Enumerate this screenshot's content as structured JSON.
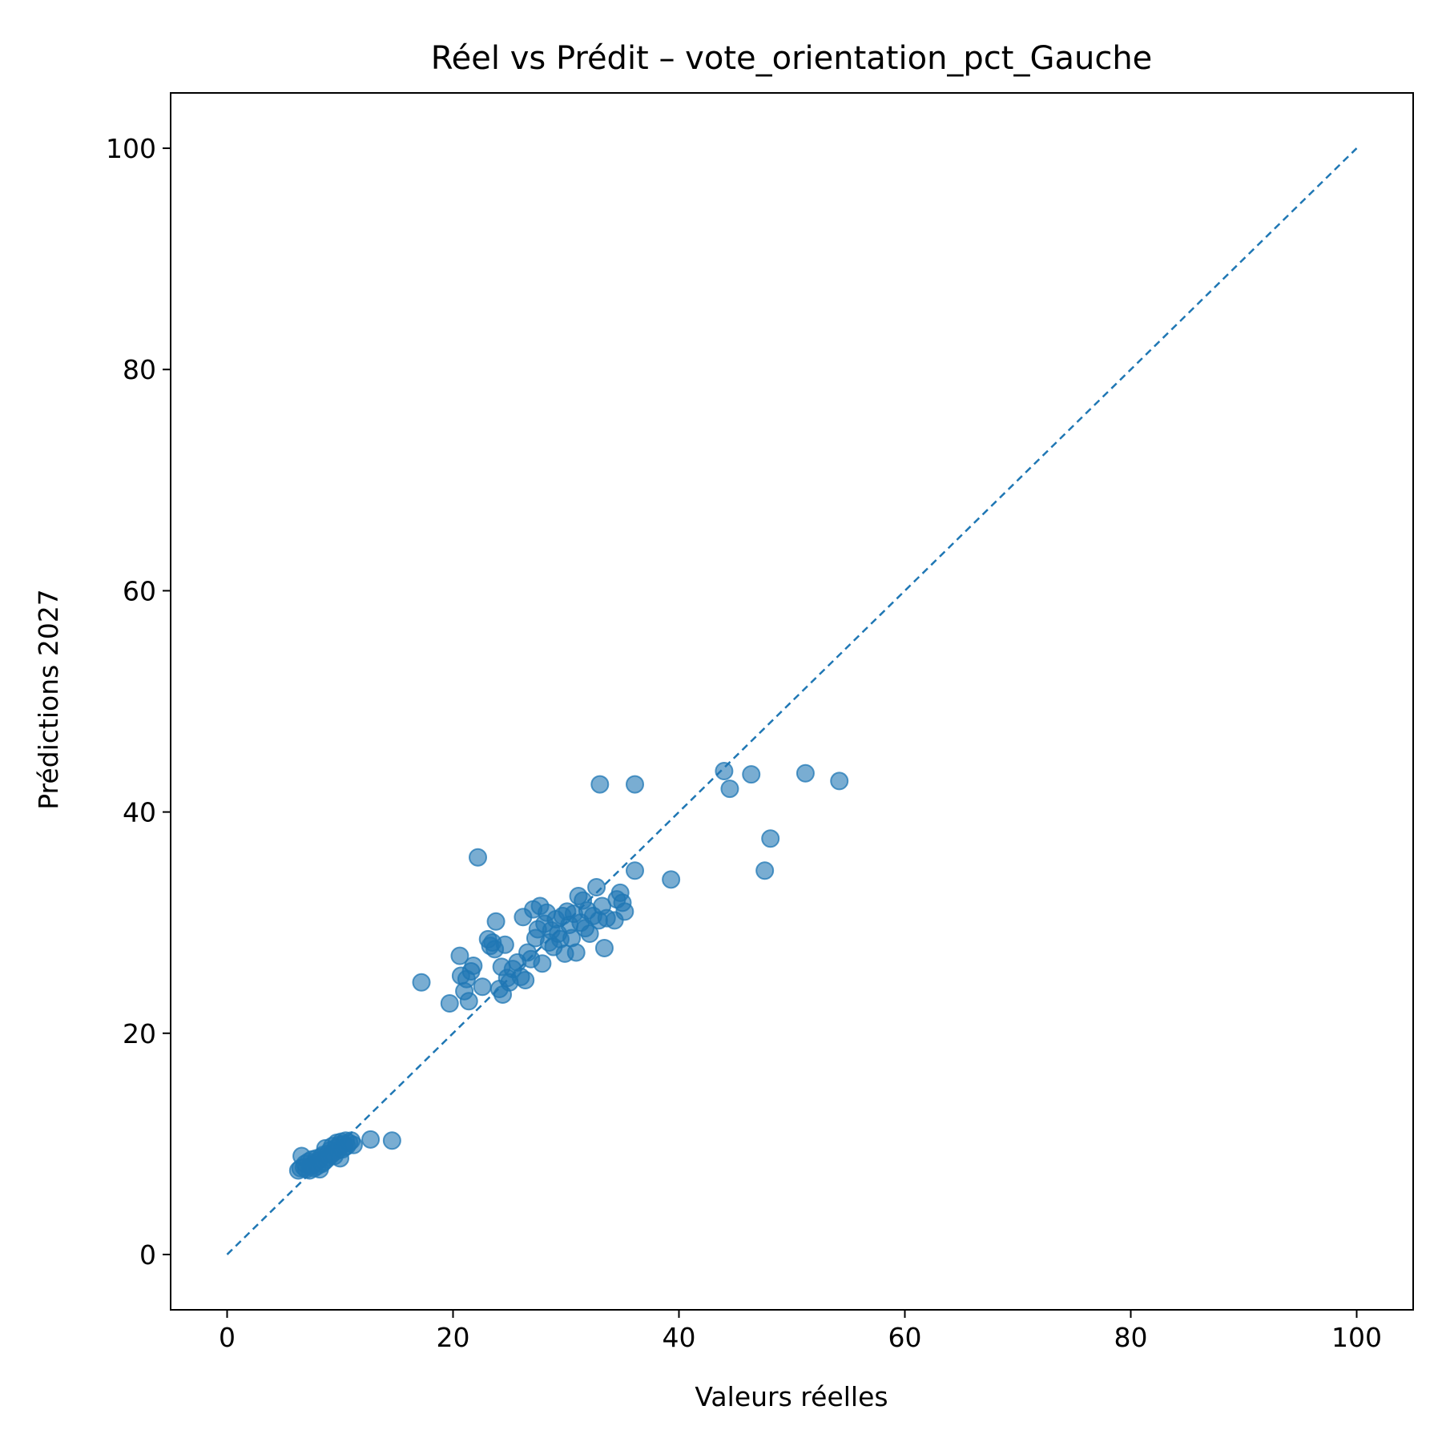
{
  "chart_data": {
    "type": "scatter",
    "title": "Réel vs Prédit – vote_orientation_pct_Gauche",
    "xlabel": "Valeurs réelles",
    "ylabel": "Prédictions 2027",
    "xlim": [
      -5,
      105
    ],
    "ylim": [
      -5,
      105
    ],
    "xticks": [
      0,
      20,
      40,
      60,
      80,
      100
    ],
    "yticks": [
      0,
      20,
      40,
      60,
      80,
      100
    ],
    "grid": false,
    "color": "#1f77b4",
    "reference_line": {
      "x": [
        0,
        100
      ],
      "y": [
        0,
        100
      ],
      "style": "dashed"
    },
    "points": [
      [
        6.3,
        7.6
      ],
      [
        6.5,
        7.8
      ],
      [
        6.6,
        8.9
      ],
      [
        6.8,
        7.9
      ],
      [
        6.9,
        8.2
      ],
      [
        7.0,
        7.7
      ],
      [
        7.2,
        8.4
      ],
      [
        7.3,
        7.6
      ],
      [
        7.4,
        8.0
      ],
      [
        7.5,
        8.6
      ],
      [
        7.6,
        8.1
      ],
      [
        7.7,
        7.8
      ],
      [
        7.8,
        8.3
      ],
      [
        7.9,
        8.7
      ],
      [
        8.0,
        8.0
      ],
      [
        8.1,
        8.5
      ],
      [
        8.2,
        7.7
      ],
      [
        8.3,
        8.8
      ],
      [
        8.4,
        8.2
      ],
      [
        8.5,
        9.0
      ],
      [
        8.6,
        8.4
      ],
      [
        8.7,
        9.6
      ],
      [
        8.8,
        8.6
      ],
      [
        8.9,
        9.1
      ],
      [
        9.0,
        8.8
      ],
      [
        9.1,
        9.4
      ],
      [
        9.2,
        9.0
      ],
      [
        9.3,
        9.8
      ],
      [
        9.4,
        9.2
      ],
      [
        9.5,
        8.9
      ],
      [
        9.6,
        9.6
      ],
      [
        9.7,
        10.1
      ],
      [
        9.8,
        9.4
      ],
      [
        9.9,
        9.9
      ],
      [
        10.0,
        8.7
      ],
      [
        10.1,
        10.2
      ],
      [
        10.2,
        9.5
      ],
      [
        10.3,
        10.0
      ],
      [
        10.4,
        9.7
      ],
      [
        10.5,
        10.3
      ],
      [
        10.6,
        9.8
      ],
      [
        10.8,
        10.1
      ],
      [
        11.0,
        10.3
      ],
      [
        11.2,
        9.9
      ],
      [
        12.7,
        10.4
      ],
      [
        14.6,
        10.3
      ],
      [
        17.2,
        24.6
      ],
      [
        19.7,
        22.7
      ],
      [
        20.6,
        27.0
      ],
      [
        20.7,
        25.2
      ],
      [
        21.0,
        23.8
      ],
      [
        21.2,
        24.9
      ],
      [
        21.4,
        22.9
      ],
      [
        21.6,
        25.6
      ],
      [
        21.8,
        26.1
      ],
      [
        22.2,
        35.9
      ],
      [
        22.6,
        24.2
      ],
      [
        23.1,
        28.5
      ],
      [
        23.3,
        27.9
      ],
      [
        23.5,
        28.2
      ],
      [
        23.7,
        27.6
      ],
      [
        23.8,
        30.1
      ],
      [
        24.1,
        24.0
      ],
      [
        24.3,
        26.0
      ],
      [
        24.4,
        23.5
      ],
      [
        24.6,
        28.0
      ],
      [
        24.8,
        25.0
      ],
      [
        25.0,
        24.6
      ],
      [
        25.3,
        25.8
      ],
      [
        25.7,
        26.4
      ],
      [
        26.0,
        25.1
      ],
      [
        26.2,
        30.5
      ],
      [
        26.4,
        24.8
      ],
      [
        26.6,
        27.3
      ],
      [
        26.9,
        26.7
      ],
      [
        27.1,
        31.2
      ],
      [
        27.3,
        28.6
      ],
      [
        27.5,
        29.4
      ],
      [
        27.7,
        31.5
      ],
      [
        27.9,
        26.3
      ],
      [
        28.1,
        29.9
      ],
      [
        28.3,
        30.9
      ],
      [
        28.5,
        28.2
      ],
      [
        28.7,
        29.3
      ],
      [
        28.9,
        27.8
      ],
      [
        29.1,
        30.3
      ],
      [
        29.3,
        29.0
      ],
      [
        29.5,
        28.5
      ],
      [
        29.7,
        30.6
      ],
      [
        29.9,
        27.2
      ],
      [
        30.1,
        31.0
      ],
      [
        30.3,
        29.8
      ],
      [
        30.5,
        28.6
      ],
      [
        30.7,
        30.8
      ],
      [
        30.9,
        27.3
      ],
      [
        31.1,
        32.4
      ],
      [
        31.3,
        30.0
      ],
      [
        31.5,
        32.0
      ],
      [
        31.7,
        29.5
      ],
      [
        31.9,
        31.1
      ],
      [
        32.1,
        29.0
      ],
      [
        32.4,
        30.6
      ],
      [
        32.7,
        33.2
      ],
      [
        32.9,
        30.2
      ],
      [
        33.0,
        42.5
      ],
      [
        33.2,
        31.5
      ],
      [
        33.4,
        27.7
      ],
      [
        33.6,
        30.4
      ],
      [
        34.3,
        30.2
      ],
      [
        34.5,
        32.1
      ],
      [
        34.8,
        32.7
      ],
      [
        35.0,
        31.8
      ],
      [
        35.2,
        31.0
      ],
      [
        36.1,
        42.5
      ],
      [
        36.1,
        34.7
      ],
      [
        39.3,
        33.9
      ],
      [
        44.0,
        43.7
      ],
      [
        44.5,
        42.1
      ],
      [
        46.4,
        43.4
      ],
      [
        47.6,
        34.7
      ],
      [
        48.1,
        37.6
      ],
      [
        51.2,
        43.5
      ],
      [
        54.2,
        42.8
      ]
    ]
  }
}
